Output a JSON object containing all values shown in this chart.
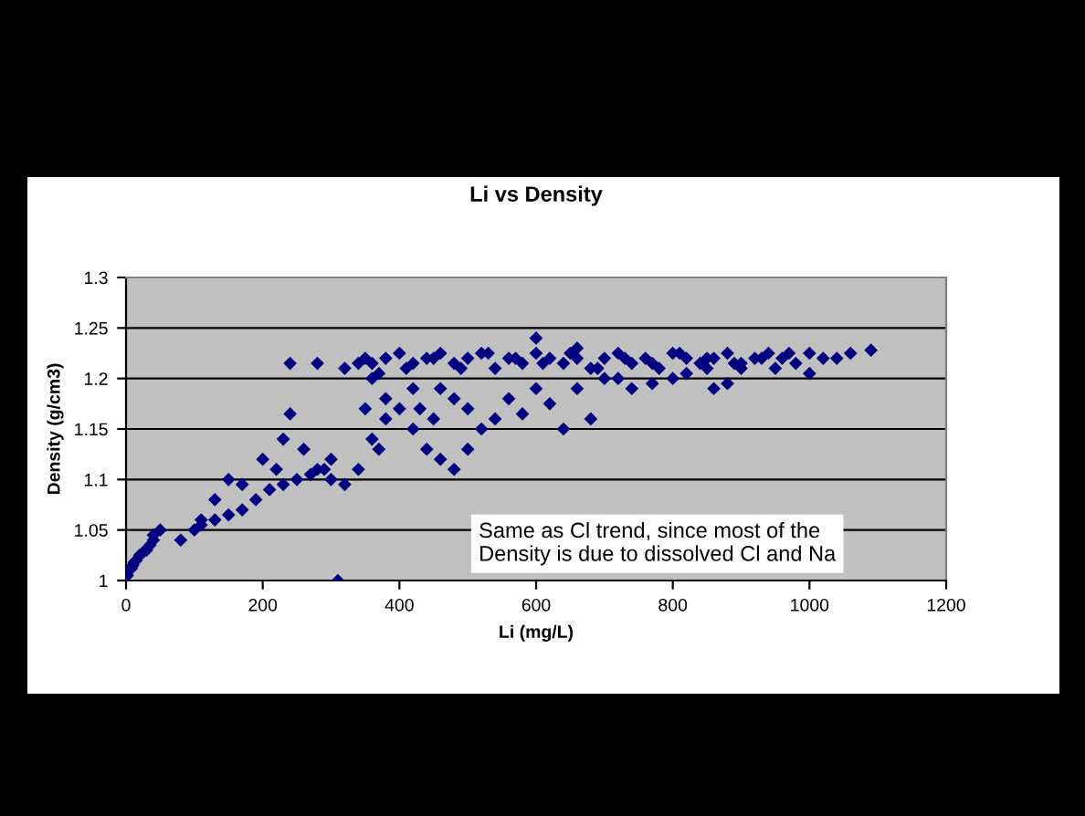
{
  "chart_data": {
    "type": "scatter",
    "title": "Li vs Density",
    "xlabel": "Li (mg/L)",
    "ylabel": "Density (g/cm3)",
    "annotations": [
      "Same as Cl trend, since most of the\nDensity is due to dissolved Cl and Na"
    ],
    "series": [
      {
        "color": "#000080",
        "x": [
          2,
          8,
          10,
          12,
          15,
          20,
          25,
          30,
          35,
          40,
          40,
          50,
          80,
          100,
          110,
          130,
          150,
          170,
          190,
          210,
          230,
          250,
          270,
          290,
          110,
          130,
          150,
          170,
          200,
          220,
          230,
          260,
          240,
          280,
          300,
          320,
          340,
          360,
          380,
          400,
          420,
          380,
          350,
          360,
          370,
          300,
          310,
          240,
          280,
          320,
          350,
          340,
          420,
          440,
          460,
          480,
          500,
          520,
          540,
          500,
          480,
          460,
          430,
          450,
          560,
          600,
          580,
          620,
          640,
          660,
          700,
          680,
          720,
          740,
          770,
          800,
          820,
          850,
          900,
          950,
          1000,
          860,
          880,
          360,
          380,
          400,
          420,
          440,
          460,
          480,
          500,
          520,
          540,
          560,
          580,
          600,
          620,
          640,
          660,
          680,
          700,
          720,
          740,
          760,
          780,
          800,
          820,
          840,
          860,
          880,
          900,
          920,
          940,
          960,
          980,
          1000,
          370,
          410,
          450,
          490,
          530,
          570,
          610,
          650,
          690,
          730,
          770,
          810,
          850,
          890,
          930,
          970,
          600,
          660,
          1020,
          1040,
          1060,
          1090
        ],
        "values": [
          1.005,
          1.012,
          1.015,
          1.018,
          1.02,
          1.025,
          1.028,
          1.03,
          1.035,
          1.04,
          1.045,
          1.05,
          1.04,
          1.05,
          1.055,
          1.06,
          1.065,
          1.07,
          1.08,
          1.09,
          1.095,
          1.1,
          1.105,
          1.11,
          1.06,
          1.08,
          1.1,
          1.095,
          1.12,
          1.11,
          1.14,
          1.13,
          1.165,
          1.11,
          1.1,
          1.095,
          1.11,
          1.14,
          1.16,
          1.17,
          1.19,
          1.18,
          1.17,
          1.2,
          1.13,
          1.12,
          1.0,
          1.215,
          1.215,
          1.21,
          1.22,
          1.215,
          1.15,
          1.13,
          1.12,
          1.11,
          1.13,
          1.15,
          1.16,
          1.17,
          1.18,
          1.19,
          1.17,
          1.16,
          1.18,
          1.19,
          1.165,
          1.175,
          1.15,
          1.19,
          1.2,
          1.16,
          1.2,
          1.19,
          1.195,
          1.2,
          1.205,
          1.21,
          1.21,
          1.21,
          1.205,
          1.19,
          1.195,
          1.215,
          1.22,
          1.225,
          1.215,
          1.22,
          1.225,
          1.215,
          1.22,
          1.225,
          1.21,
          1.22,
          1.215,
          1.225,
          1.22,
          1.215,
          1.22,
          1.21,
          1.22,
          1.225,
          1.215,
          1.22,
          1.21,
          1.225,
          1.22,
          1.215,
          1.22,
          1.225,
          1.215,
          1.22,
          1.225,
          1.22,
          1.215,
          1.225,
          1.205,
          1.21,
          1.22,
          1.21,
          1.225,
          1.22,
          1.215,
          1.225,
          1.21,
          1.22,
          1.215,
          1.225,
          1.22,
          1.215,
          1.22,
          1.225,
          1.24,
          1.23,
          1.22,
          1.22,
          1.225,
          1.228
        ]
      }
    ],
    "xlim": [
      0,
      1200
    ],
    "xticks": [
      0,
      200,
      400,
      600,
      800,
      1000,
      1200
    ],
    "ylim": [
      1,
      1.3
    ],
    "yticks": [
      1,
      1.05,
      1.1,
      1.15,
      1.2,
      1.25,
      1.3
    ],
    "grid": "y",
    "marker": "diamond",
    "legend": false
  }
}
